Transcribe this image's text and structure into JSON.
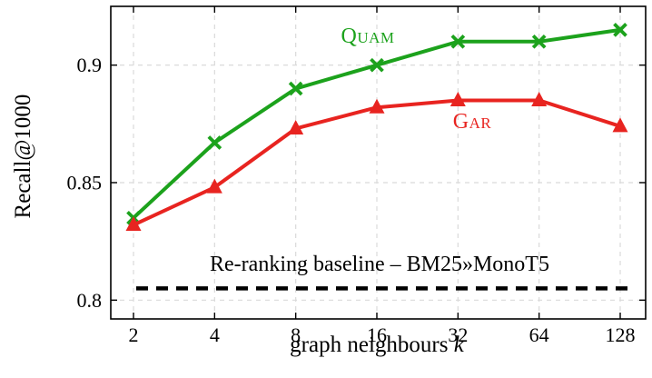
{
  "chart_data": {
    "type": "line",
    "title": "",
    "xlabel": "graph neighbours",
    "xlabel_var": "k",
    "ylabel": "Recall@1000",
    "x_scale": "log2",
    "x_ticks": [
      "2",
      "4",
      "8",
      "16",
      "32",
      "64",
      "128"
    ],
    "y_ticks": [
      0.8,
      0.85,
      0.9
    ],
    "y_tick_labels": [
      "0.8",
      "0.85",
      "0.9"
    ],
    "ylim": [
      0.792,
      0.925
    ],
    "grid": true,
    "grid_style": "dashed",
    "legend_position": "inline-annotations",
    "series": [
      {
        "name": "Quam",
        "color": "#1ca21c",
        "marker": "x",
        "values": [
          0.835,
          0.867,
          0.89,
          0.9,
          0.91,
          0.91,
          0.915
        ]
      },
      {
        "name": "Gar",
        "color": "#e82420",
        "marker": "triangle",
        "values": [
          0.832,
          0.848,
          0.873,
          0.882,
          0.885,
          0.885,
          0.874
        ]
      }
    ],
    "baseline": {
      "label": "Re-ranking baseline – BM25»MonoT5",
      "value": 0.805,
      "style": "dashed",
      "color": "#000000"
    }
  }
}
